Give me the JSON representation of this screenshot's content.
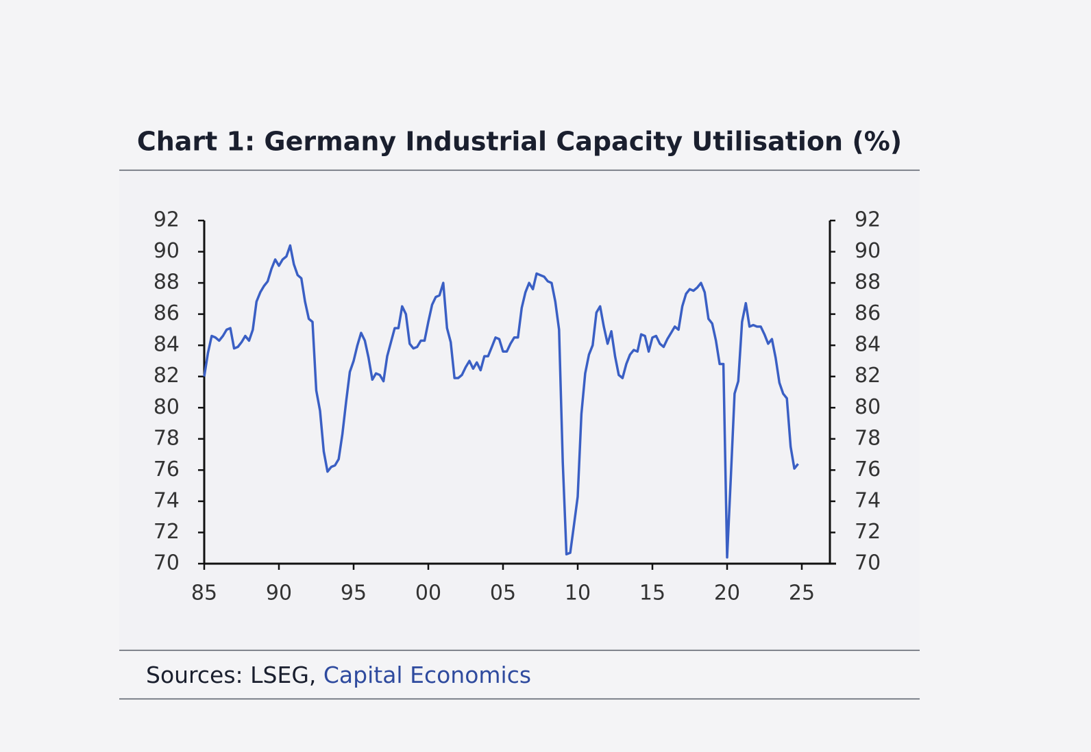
{
  "chart_data": {
    "type": "line",
    "title": "Chart 1: Germany Industrial Capacity Utilisation (%)",
    "source_prefix": "Sources: LSEG, ",
    "source_link": "Capital Economics",
    "x": [
      1985,
      1985.25,
      1985.5,
      1985.75,
      1986,
      1986.25,
      1986.5,
      1986.75,
      1987,
      1987.25,
      1987.5,
      1987.75,
      1988,
      1988.25,
      1988.5,
      1988.75,
      1989,
      1989.25,
      1989.5,
      1989.75,
      1990,
      1990.25,
      1990.5,
      1990.75,
      1991,
      1991.25,
      1991.5,
      1991.75,
      1992,
      1992.25,
      1992.5,
      1992.75,
      1993,
      1993.25,
      1993.5,
      1993.75,
      1994,
      1994.25,
      1994.5,
      1994.75,
      1995,
      1995.25,
      1995.5,
      1995.75,
      1996,
      1996.25,
      1996.5,
      1996.75,
      1997,
      1997.25,
      1997.5,
      1997.75,
      1998,
      1998.25,
      1998.5,
      1998.75,
      1999,
      1999.25,
      1999.5,
      1999.75,
      2000,
      2000.25,
      2000.5,
      2000.75,
      2001,
      2001.25,
      2001.5,
      2001.75,
      2002,
      2002.25,
      2002.5,
      2002.75,
      2003,
      2003.25,
      2003.5,
      2003.75,
      2004,
      2004.25,
      2004.5,
      2004.75,
      2005,
      2005.25,
      2005.5,
      2005.75,
      2006,
      2006.25,
      2006.5,
      2006.75,
      2007,
      2007.25,
      2007.5,
      2007.75,
      2008,
      2008.25,
      2008.5,
      2008.75,
      2009,
      2009.25,
      2009.5,
      2009.75,
      2010,
      2010.25,
      2010.5,
      2010.75,
      2011,
      2011.25,
      2011.5,
      2011.75,
      2012,
      2012.25,
      2012.5,
      2012.75,
      2013,
      2013.25,
      2013.5,
      2013.75,
      2014,
      2014.25,
      2014.5,
      2014.75,
      2015,
      2015.25,
      2015.5,
      2015.75,
      2016,
      2016.25,
      2016.5,
      2016.75,
      2017,
      2017.25,
      2017.5,
      2017.75,
      2018,
      2018.25,
      2018.5,
      2018.75,
      2019,
      2019.25,
      2019.5,
      2019.75,
      2020,
      2020.25,
      2020.5,
      2020.75,
      2021,
      2021.25,
      2021.5,
      2021.75,
      2022,
      2022.25,
      2022.5,
      2022.75,
      2023,
      2023.25,
      2023.5,
      2023.75,
      2024,
      2024.25,
      2024.5,
      2024.75
    ],
    "series": [
      {
        "color": "#3a5fc4",
        "values": [
          82,
          83.5,
          84.6,
          84.5,
          84.3,
          84.6,
          85,
          85.1,
          83.8,
          83.9,
          84.2,
          84.6,
          84.3,
          85,
          86.8,
          87.4,
          87.8,
          88.1,
          88.9,
          89.5,
          89.1,
          89.5,
          89.7,
          90.4,
          89.2,
          88.5,
          88.3,
          86.8,
          85.7,
          85.5,
          81.1,
          79.8,
          77.2,
          75.9,
          76.2,
          76.3,
          76.7,
          78.3,
          80.4,
          82.3,
          83,
          84,
          84.8,
          84.3,
          83.2,
          81.8,
          82.2,
          82.1,
          81.7,
          83.3,
          84.2,
          85.1,
          85.1,
          86.5,
          86,
          84.1,
          83.8,
          83.9,
          84.3,
          84.3,
          85.5,
          86.6,
          87.1,
          87.2,
          88,
          85.1,
          84.2,
          81.9,
          81.9,
          82.1,
          82.6,
          83,
          82.5,
          82.9,
          82.4,
          83.3,
          83.3,
          83.9,
          84.5,
          84.4,
          83.6,
          83.6,
          84.1,
          84.5,
          84.5,
          86.4,
          87.4,
          88,
          87.6,
          88.6,
          88.5,
          88.4,
          88.1,
          88,
          86.8,
          85,
          76.5,
          70.6,
          70.7,
          72.5,
          74.3,
          79.6,
          82.2,
          83.4,
          84,
          86.1,
          86.5,
          85.2,
          84.1,
          84.9,
          83.3,
          82.1,
          81.9,
          82.8,
          83.4,
          83.7,
          83.6,
          84.7,
          84.6,
          83.6,
          84.5,
          84.6,
          84.1,
          83.9,
          84.4,
          84.8,
          85.2,
          85,
          86.5,
          87.3,
          87.6,
          87.5,
          87.7,
          88,
          87.4,
          85.7,
          85.4,
          84.3,
          82.8,
          82.8,
          70.4,
          75.5,
          80.9,
          81.7,
          85.5,
          86.7,
          85.2,
          85.3,
          85.2,
          85.2,
          84.7,
          84.1,
          84.4,
          83.2,
          81.6,
          80.9,
          80.6,
          77.5,
          76.1,
          76.4
        ]
      }
    ],
    "xlim": [
      1985,
      2027.5
    ],
    "xticks": [
      {
        "value": 1985,
        "label": "85"
      },
      {
        "value": 1990,
        "label": "90"
      },
      {
        "value": 1995,
        "label": "95"
      },
      {
        "value": 2000,
        "label": "00"
      },
      {
        "value": 2005,
        "label": "05"
      },
      {
        "value": 2010,
        "label": "10"
      },
      {
        "value": 2015,
        "label": "15"
      },
      {
        "value": 2020,
        "label": "20"
      },
      {
        "value": 2025,
        "label": "25"
      }
    ],
    "ylim": [
      70,
      92
    ],
    "yticks": [
      70,
      72,
      74,
      76,
      78,
      80,
      82,
      84,
      86,
      88,
      90,
      92
    ]
  }
}
